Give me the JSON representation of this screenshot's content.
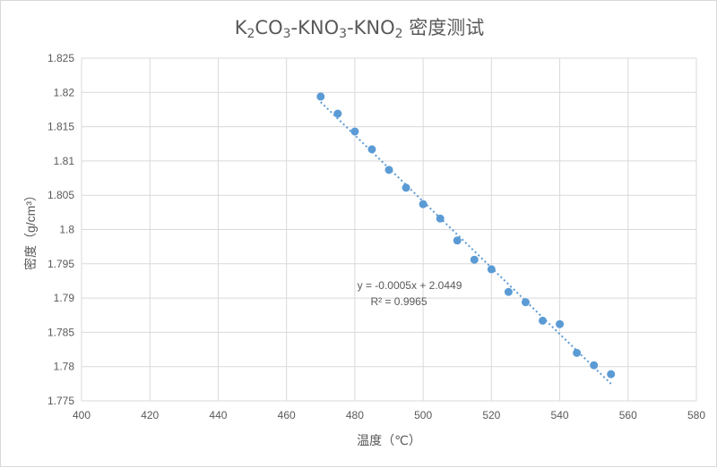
{
  "chart_data": {
    "type": "scatter",
    "title_parts": [
      {
        "t": "K",
        "sub": "2"
      },
      {
        "t": "CO",
        "sub": "3"
      },
      {
        "t": "-KNO",
        "sub": "3"
      },
      {
        "t": "-KNO",
        "sub": "2"
      },
      {
        "t": "  密度测试",
        "sub": ""
      }
    ],
    "title": "K2CO3-KNO3-KNO2  密度测试",
    "xlabel": "温度（℃）",
    "ylabel": "密度（g/cm³）",
    "xlim": [
      400,
      580
    ],
    "ylim": [
      1.775,
      1.825
    ],
    "xticks": [
      "400",
      "420",
      "440",
      "460",
      "480",
      "500",
      "520",
      "540",
      "560",
      "580"
    ],
    "yticks": [
      "1.775",
      "1.78",
      "1.785",
      "1.79",
      "1.795",
      "1.8",
      "1.805",
      "1.81",
      "1.815",
      "1.82",
      "1.825"
    ],
    "grid": true,
    "color": "#5b9bd5",
    "x": [
      470,
      475,
      480,
      485,
      490,
      495,
      500,
      505,
      510,
      515,
      520,
      525,
      530,
      535,
      540,
      545,
      550,
      555
    ],
    "y": [
      1.8194,
      1.8169,
      1.8143,
      1.8117,
      1.8087,
      1.8061,
      1.8037,
      1.8016,
      1.7984,
      1.7956,
      1.7942,
      1.7909,
      1.7894,
      1.7867,
      1.7862,
      1.782,
      1.7802,
      1.7789
    ],
    "trendline": {
      "type": "linear",
      "equation": "y = -0.0005x + 2.0449",
      "r2": "R² = 0.9965"
    }
  }
}
